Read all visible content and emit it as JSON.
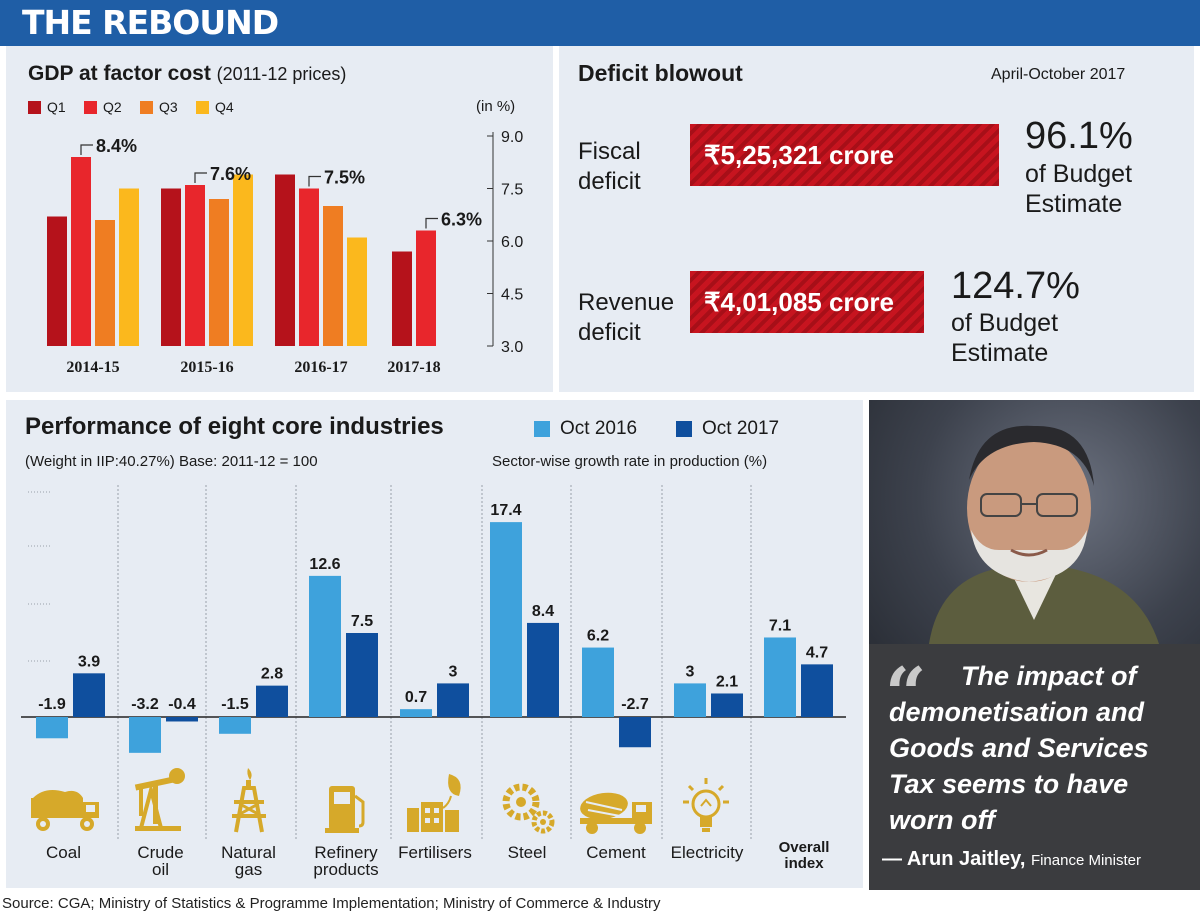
{
  "header": {
    "title": "THE REBOUND"
  },
  "gdp": {
    "title": "GDP at factor cost",
    "subtitle": "(2011-12 prices)",
    "unit": "(in %)",
    "legend": [
      {
        "label": "Q1",
        "color": "#b5121b"
      },
      {
        "label": "Q2",
        "color": "#e8262c"
      },
      {
        "label": "Q3",
        "color": "#ef7d22"
      },
      {
        "label": "Q4",
        "color": "#fbb81d"
      }
    ]
  },
  "deficit": {
    "title": "Deficit blowout",
    "period": "April-October 2017",
    "fiscal": {
      "label_line1": "Fiscal",
      "label_line2": "deficit",
      "amount": "₹5,25,321 crore",
      "pct": "96.1%",
      "note_line1": "of Budget",
      "note_line2": "Estimate"
    },
    "revenue": {
      "label_line1": "Revenue",
      "label_line2": "deficit",
      "amount": "₹4,01,085 crore",
      "pct": "124.7%",
      "note_line1": "of Budget",
      "note_line2": "Estimate"
    }
  },
  "core": {
    "title": "Performance of eight core industries",
    "subtitle": "(Weight in IIP:40.27%) Base: 2011-12 = 100",
    "subtitle2": "Sector-wise growth rate in production (%)",
    "legend": [
      {
        "label": "Oct 2016",
        "color": "#3ea2dc"
      },
      {
        "label": "Oct 2017",
        "color": "#0f4f9e"
      }
    ],
    "sector_labels": [
      [
        "Coal"
      ],
      [
        "Crude",
        "oil"
      ],
      [
        "Natural",
        "gas"
      ],
      [
        "Refinery",
        "products"
      ],
      [
        "Fertilisers"
      ],
      [
        "Steel"
      ],
      [
        "Cement"
      ],
      [
        "Electricity"
      ],
      [
        "Overall",
        "index"
      ]
    ],
    "icons": [
      "dump-truck-icon",
      "oil-pump-icon",
      "gas-rig-icon",
      "fuel-pump-icon",
      "factory-leaf-icon",
      "gears-icon",
      "cement-mixer-icon",
      "bulb-icon",
      "none"
    ]
  },
  "quote": {
    "text": "The impact of demonetisation and Goods and Services Tax seems to have worn off",
    "name": "— Arun Jaitley,",
    "role": "Finance Minister"
  },
  "source": "Source: CGA; Ministry of Statistics & Programme Implementation; Ministry of Commerce & Industry",
  "chart_data": [
    {
      "type": "bar",
      "title": "GDP at factor cost (2011-12 prices)",
      "categories": [
        "2014-15",
        "2015-16",
        "2016-17",
        "2017-18"
      ],
      "series": [
        {
          "name": "Q1",
          "values": [
            6.7,
            7.5,
            7.9,
            5.7
          ]
        },
        {
          "name": "Q2",
          "values": [
            8.4,
            7.6,
            7.5,
            6.3
          ]
        },
        {
          "name": "Q3",
          "values": [
            6.6,
            7.2,
            7.0,
            null
          ]
        },
        {
          "name": "Q4",
          "values": [
            7.5,
            7.9,
            6.1,
            null
          ]
        }
      ],
      "labels": [
        {
          "category": "2014-15",
          "series": "Q2",
          "text": "8.4%"
        },
        {
          "category": "2015-16",
          "series": "Q2",
          "text": "7.6%"
        },
        {
          "category": "2016-17",
          "series": "Q2",
          "text": "7.5%"
        },
        {
          "category": "2017-18",
          "series": "Q2",
          "text": "6.3%"
        }
      ],
      "yticks": [
        "3.0",
        "4.5",
        "6.0",
        "7.5",
        "9.0"
      ],
      "ylim": [
        3.0,
        9.0
      ],
      "legend": "top-left"
    },
    {
      "type": "bar",
      "title": "Performance of eight core industries",
      "categories": [
        "Coal",
        "Crude oil",
        "Natural gas",
        "Refinery products",
        "Fertilisers",
        "Steel",
        "Cement",
        "Electricity",
        "Overall index"
      ],
      "series": [
        {
          "name": "Oct 2016",
          "values": [
            -1.9,
            -3.2,
            -1.5,
            12.6,
            0.7,
            17.4,
            6.2,
            3,
            7.1
          ],
          "labels": [
            "-1.9",
            "-3.2",
            "-1.5",
            "12.6",
            "0.7",
            "17.4",
            "6.2",
            "3",
            "7.1"
          ]
        },
        {
          "name": "Oct 2017",
          "values": [
            3.9,
            -0.4,
            2.8,
            7.5,
            3,
            8.4,
            -2.7,
            2.1,
            4.7
          ],
          "labels": [
            "3.9",
            "-0.4",
            "2.8",
            "7.5",
            "3",
            "8.4",
            "-2.7",
            "2.1",
            "4.7"
          ]
        }
      ],
      "legend": "top-right"
    }
  ]
}
